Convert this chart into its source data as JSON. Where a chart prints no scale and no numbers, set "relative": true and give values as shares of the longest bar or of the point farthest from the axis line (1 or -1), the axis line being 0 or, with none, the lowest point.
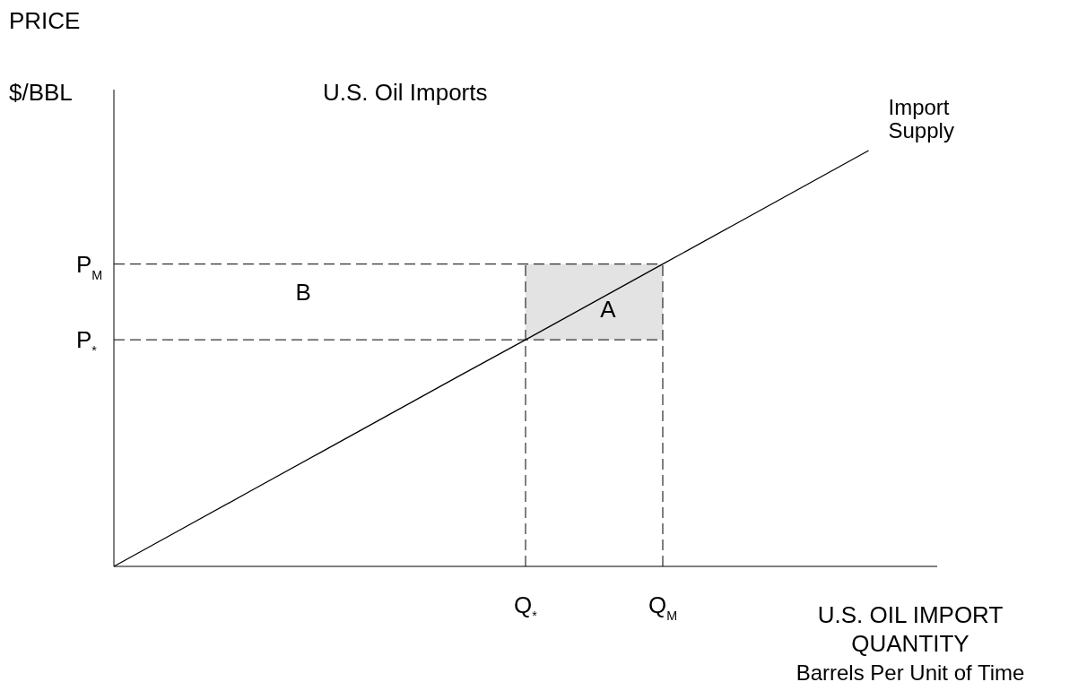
{
  "chart_data": {
    "type": "line",
    "title": "U.S. Oil Imports",
    "ylabel": "PRICE\n$/BBL",
    "xlabel": "U.S. OIL IMPORT\nQUANTITY\nBarrels Per Unit of Time",
    "relative": true,
    "tick_labels": "x",
    "categories": [
      null,
      null,
      null,
      null,
      null,
      null,
      "Q$_{*}$",
      null,
      "Q$_{M}$",
      null,
      null,
      null,
      null
    ],
    "series": [
      {
        "name": "Import\nSupply",
        "color": "#000000",
        "values": [
          0,
          0.091,
          0.182,
          0.273,
          0.364,
          0.455,
          0.545,
          0.636,
          0.727,
          0.818,
          0.909,
          1,
          null
        ]
      }
    ],
    "ref_lines": [
      {
        "axis": "y",
        "value": 0.727,
        "label": "P$_{M}$",
        "line_style": "dashed",
        "color": "#000000"
      },
      {
        "axis": "y",
        "value": 0.545,
        "label": "P$_{*}$",
        "line_style": "dashed",
        "color": "#000000"
      }
    ],
    "annotations": [
      "A",
      "B"
    ]
  }
}
